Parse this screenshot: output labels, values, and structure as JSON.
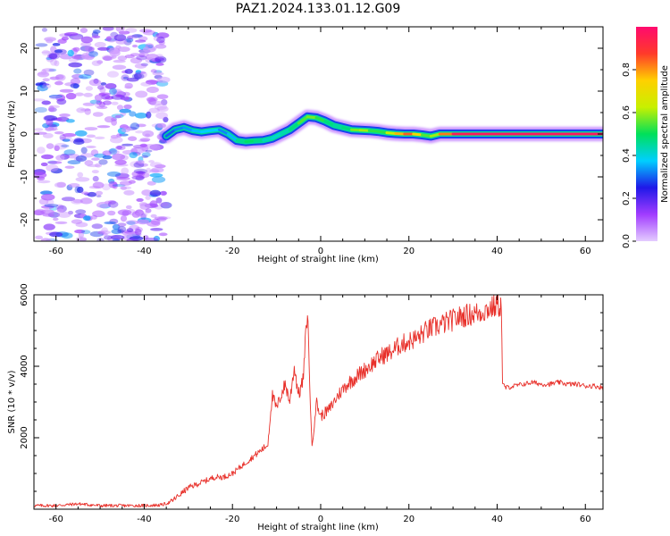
{
  "figure_title": "PAZ1.2024.133.01.12.G09",
  "colors": {
    "snr_line": "#e8302a",
    "axes": "#000000",
    "colorbar_stops": [
      "#e4ccff",
      "#a13cff",
      "#1f18e8",
      "#00cfff",
      "#00e05a",
      "#c8f000",
      "#ffd000",
      "#ff3a2a",
      "#ff0a6e"
    ]
  },
  "chart_data": [
    {
      "type": "heatmap",
      "title": "PAZ1.2024.133.01.12.G09",
      "xlabel": "Height of straight line (km)",
      "ylabel": "Frequency (Hz)",
      "xlim": [
        -65,
        64
      ],
      "ylim": [
        -25,
        25
      ],
      "xticks": [
        "-60",
        "-40",
        "-20",
        "0",
        "20",
        "40",
        "60"
      ],
      "yticks": [
        "-20",
        "-10",
        "0",
        "10",
        "20"
      ],
      "noise_region_x": [
        -64,
        -35
      ],
      "ridge": {
        "x": [
          -35,
          -33,
          -31,
          -29,
          -27,
          -25,
          -23,
          -21,
          -19,
          -17,
          -15,
          -13,
          -11,
          -9,
          -7,
          -5,
          -3,
          -1,
          1,
          3,
          5,
          7,
          9,
          11,
          13,
          15,
          17,
          19,
          21,
          23,
          25,
          27,
          30,
          35,
          40,
          45,
          50,
          55,
          60,
          64
        ],
        "y": [
          -0.5,
          1.0,
          1.5,
          0.8,
          0.5,
          0.8,
          1.0,
          0.0,
          -1.5,
          -1.8,
          -1.6,
          -1.5,
          -1.0,
          0.0,
          1.0,
          2.5,
          4.0,
          3.8,
          3.0,
          2.0,
          1.5,
          1.0,
          0.9,
          0.8,
          0.6,
          0.3,
          0.1,
          0.0,
          0.0,
          -0.2,
          -0.5,
          0.0,
          0.0,
          0.0,
          0.0,
          0.0,
          0.0,
          0.0,
          0.0,
          0.0
        ],
        "amplitude": [
          0.25,
          0.35,
          0.3,
          0.38,
          0.35,
          0.4,
          0.35,
          0.3,
          0.42,
          0.5,
          0.48,
          0.45,
          0.4,
          0.42,
          0.45,
          0.5,
          0.6,
          0.55,
          0.5,
          0.45,
          0.45,
          0.5,
          0.65,
          0.55,
          0.5,
          0.55,
          0.7,
          0.85,
          0.85,
          0.6,
          0.5,
          0.7,
          0.95,
          0.97,
          0.97,
          0.97,
          0.97,
          0.97,
          0.97,
          0.97
        ]
      },
      "colorbar": {
        "label": "Normalized spectral amplitude",
        "range": [
          0,
          1
        ],
        "ticks": [
          "0.0",
          "0.2",
          "0.4",
          "0.6",
          "0.8"
        ]
      }
    },
    {
      "type": "line",
      "xlabel": "Height of straight line (km)",
      "ylabel": "SNR (10 * v/v)",
      "xlim": [
        -65,
        64
      ],
      "ylim": [
        0,
        6000
      ],
      "xticks": [
        "-60",
        "-40",
        "-20",
        "0",
        "20",
        "40",
        "60"
      ],
      "yticks": [
        "2000",
        "4000",
        "6000"
      ],
      "series": [
        {
          "x": [
            -65,
            -60,
            -55,
            -50,
            -45,
            -40,
            -36,
            -34,
            -32,
            -30,
            -28,
            -26,
            -24,
            -22,
            -20,
            -18,
            -16,
            -14,
            -12,
            -11,
            -10,
            -9,
            -8,
            -7,
            -6,
            -5,
            -4,
            -3,
            -2,
            -1,
            0,
            2,
            4,
            6,
            8,
            10,
            12,
            14,
            16,
            18,
            20,
            22,
            24,
            26,
            28,
            30,
            32,
            34,
            36,
            38,
            40,
            41,
            41.2,
            42,
            44,
            46,
            48,
            50,
            52,
            54,
            56,
            58,
            60,
            62,
            64
          ],
          "y": [
            100,
            100,
            150,
            100,
            100,
            100,
            120,
            200,
            400,
            600,
            700,
            800,
            900,
            900,
            1000,
            1200,
            1400,
            1600,
            1800,
            3200,
            2800,
            3200,
            3500,
            3000,
            4000,
            3200,
            3600,
            5600,
            1700,
            3000,
            2600,
            2800,
            3200,
            3500,
            3700,
            3900,
            4100,
            4300,
            4400,
            4600,
            4700,
            4800,
            5000,
            5100,
            5200,
            5300,
            5400,
            5450,
            5500,
            5600,
            5700,
            5700,
            3500,
            3400,
            3450,
            3500,
            3550,
            3500,
            3500,
            3550,
            3500,
            3500,
            3450,
            3450,
            3400
          ]
        }
      ]
    }
  ]
}
